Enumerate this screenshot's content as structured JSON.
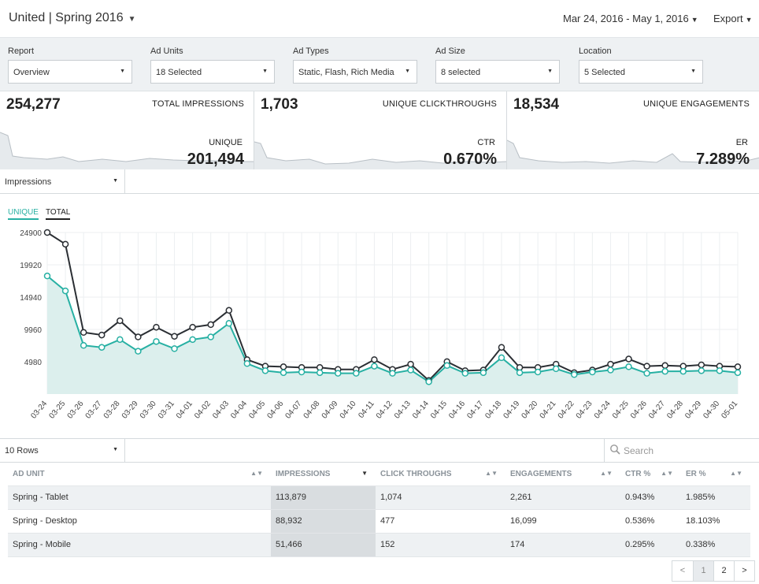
{
  "header": {
    "campaign": "United | Spring 2016",
    "date_range": "Mar 24, 2016 - May 1, 2016",
    "export_label": "Export"
  },
  "filters": [
    {
      "label": "Report",
      "value": "Overview"
    },
    {
      "label": "Ad Units",
      "value": "18 Selected"
    },
    {
      "label": "Ad Types",
      "value": "Static, Flash, Rich Media"
    },
    {
      "label": "Ad Size",
      "value": "8 selected"
    },
    {
      "label": "Location",
      "value": "5 Selected"
    }
  ],
  "stats": [
    {
      "value": "254,277",
      "title": "TOTAL IMPRESSIONS",
      "sublabel": "UNIQUE",
      "subvalue": "201,494"
    },
    {
      "value": "1,703",
      "title": "UNIQUE CLICKTHROUGHS",
      "sublabel": "CTR",
      "subvalue": "0.670%"
    },
    {
      "value": "18,534",
      "title": "UNIQUE ENGAGEMENTS",
      "sublabel": "ER",
      "subvalue": "7.289%"
    }
  ],
  "metric_select": "Impressions",
  "legend": {
    "unique": "UNIQUE",
    "total": "TOTAL"
  },
  "colors": {
    "unique": "#27b0a3",
    "total": "#2a2e33",
    "fill": "#dcefed",
    "grid": "#eceff1"
  },
  "chart_data": {
    "type": "line",
    "x": [
      "03-24",
      "03-25",
      "03-26",
      "03-27",
      "03-28",
      "03-29",
      "03-30",
      "03-31",
      "04-01",
      "04-02",
      "04-03",
      "04-04",
      "04-05",
      "04-06",
      "04-07",
      "04-08",
      "04-09",
      "04-10",
      "04-11",
      "04-12",
      "04-13",
      "04-14",
      "04-15",
      "04-16",
      "04-17",
      "04-18",
      "04-19",
      "04-20",
      "04-21",
      "04-22",
      "04-23",
      "04-24",
      "04-25",
      "04-26",
      "04-27",
      "04-28",
      "04-29",
      "04-30",
      "05-01"
    ],
    "yticks": [
      24900,
      19920,
      14940,
      9960,
      4980
    ],
    "ylim": [
      0,
      24900
    ],
    "series": [
      {
        "name": "TOTAL",
        "values": [
          24900,
          23100,
          9500,
          9100,
          11300,
          8800,
          10300,
          8900,
          10300,
          10700,
          12900,
          5300,
          4300,
          4200,
          4100,
          4100,
          3800,
          3800,
          5300,
          3800,
          4600,
          2100,
          5000,
          3600,
          3700,
          7200,
          4100,
          4100,
          4600,
          3300,
          3700,
          4600,
          5400,
          4300,
          4400,
          4300,
          4500,
          4300,
          4200
        ]
      },
      {
        "name": "UNIQUE",
        "values": [
          18200,
          15900,
          7500,
          7200,
          8400,
          6600,
          8100,
          7000,
          8400,
          8800,
          10900,
          4700,
          3600,
          3300,
          3400,
          3300,
          3200,
          3200,
          4300,
          3200,
          3700,
          1900,
          4400,
          3200,
          3300,
          5600,
          3300,
          3400,
          3900,
          3000,
          3400,
          3700,
          4200,
          3200,
          3500,
          3500,
          3600,
          3600,
          3300
        ]
      }
    ]
  },
  "table": {
    "rows_label": "10 Rows",
    "search_placeholder": "Search",
    "headers": [
      "AD UNIT",
      "IMPRESSIONS",
      "CLICK THROUGHS",
      "ENGAGEMENTS",
      "CTR %",
      "ER %"
    ],
    "rows": [
      [
        "Spring - Tablet",
        "113,879",
        "1,074",
        "2,261",
        "0.943%",
        "1.985%"
      ],
      [
        "Spring - Desktop",
        "88,932",
        "477",
        "16,099",
        "0.536%",
        "18.103%"
      ],
      [
        "Spring - Mobile",
        "51,466",
        "152",
        "174",
        "0.295%",
        "0.338%"
      ]
    ]
  },
  "pagination": {
    "prev": "<",
    "pages": [
      "1",
      "2"
    ],
    "next": ">"
  }
}
